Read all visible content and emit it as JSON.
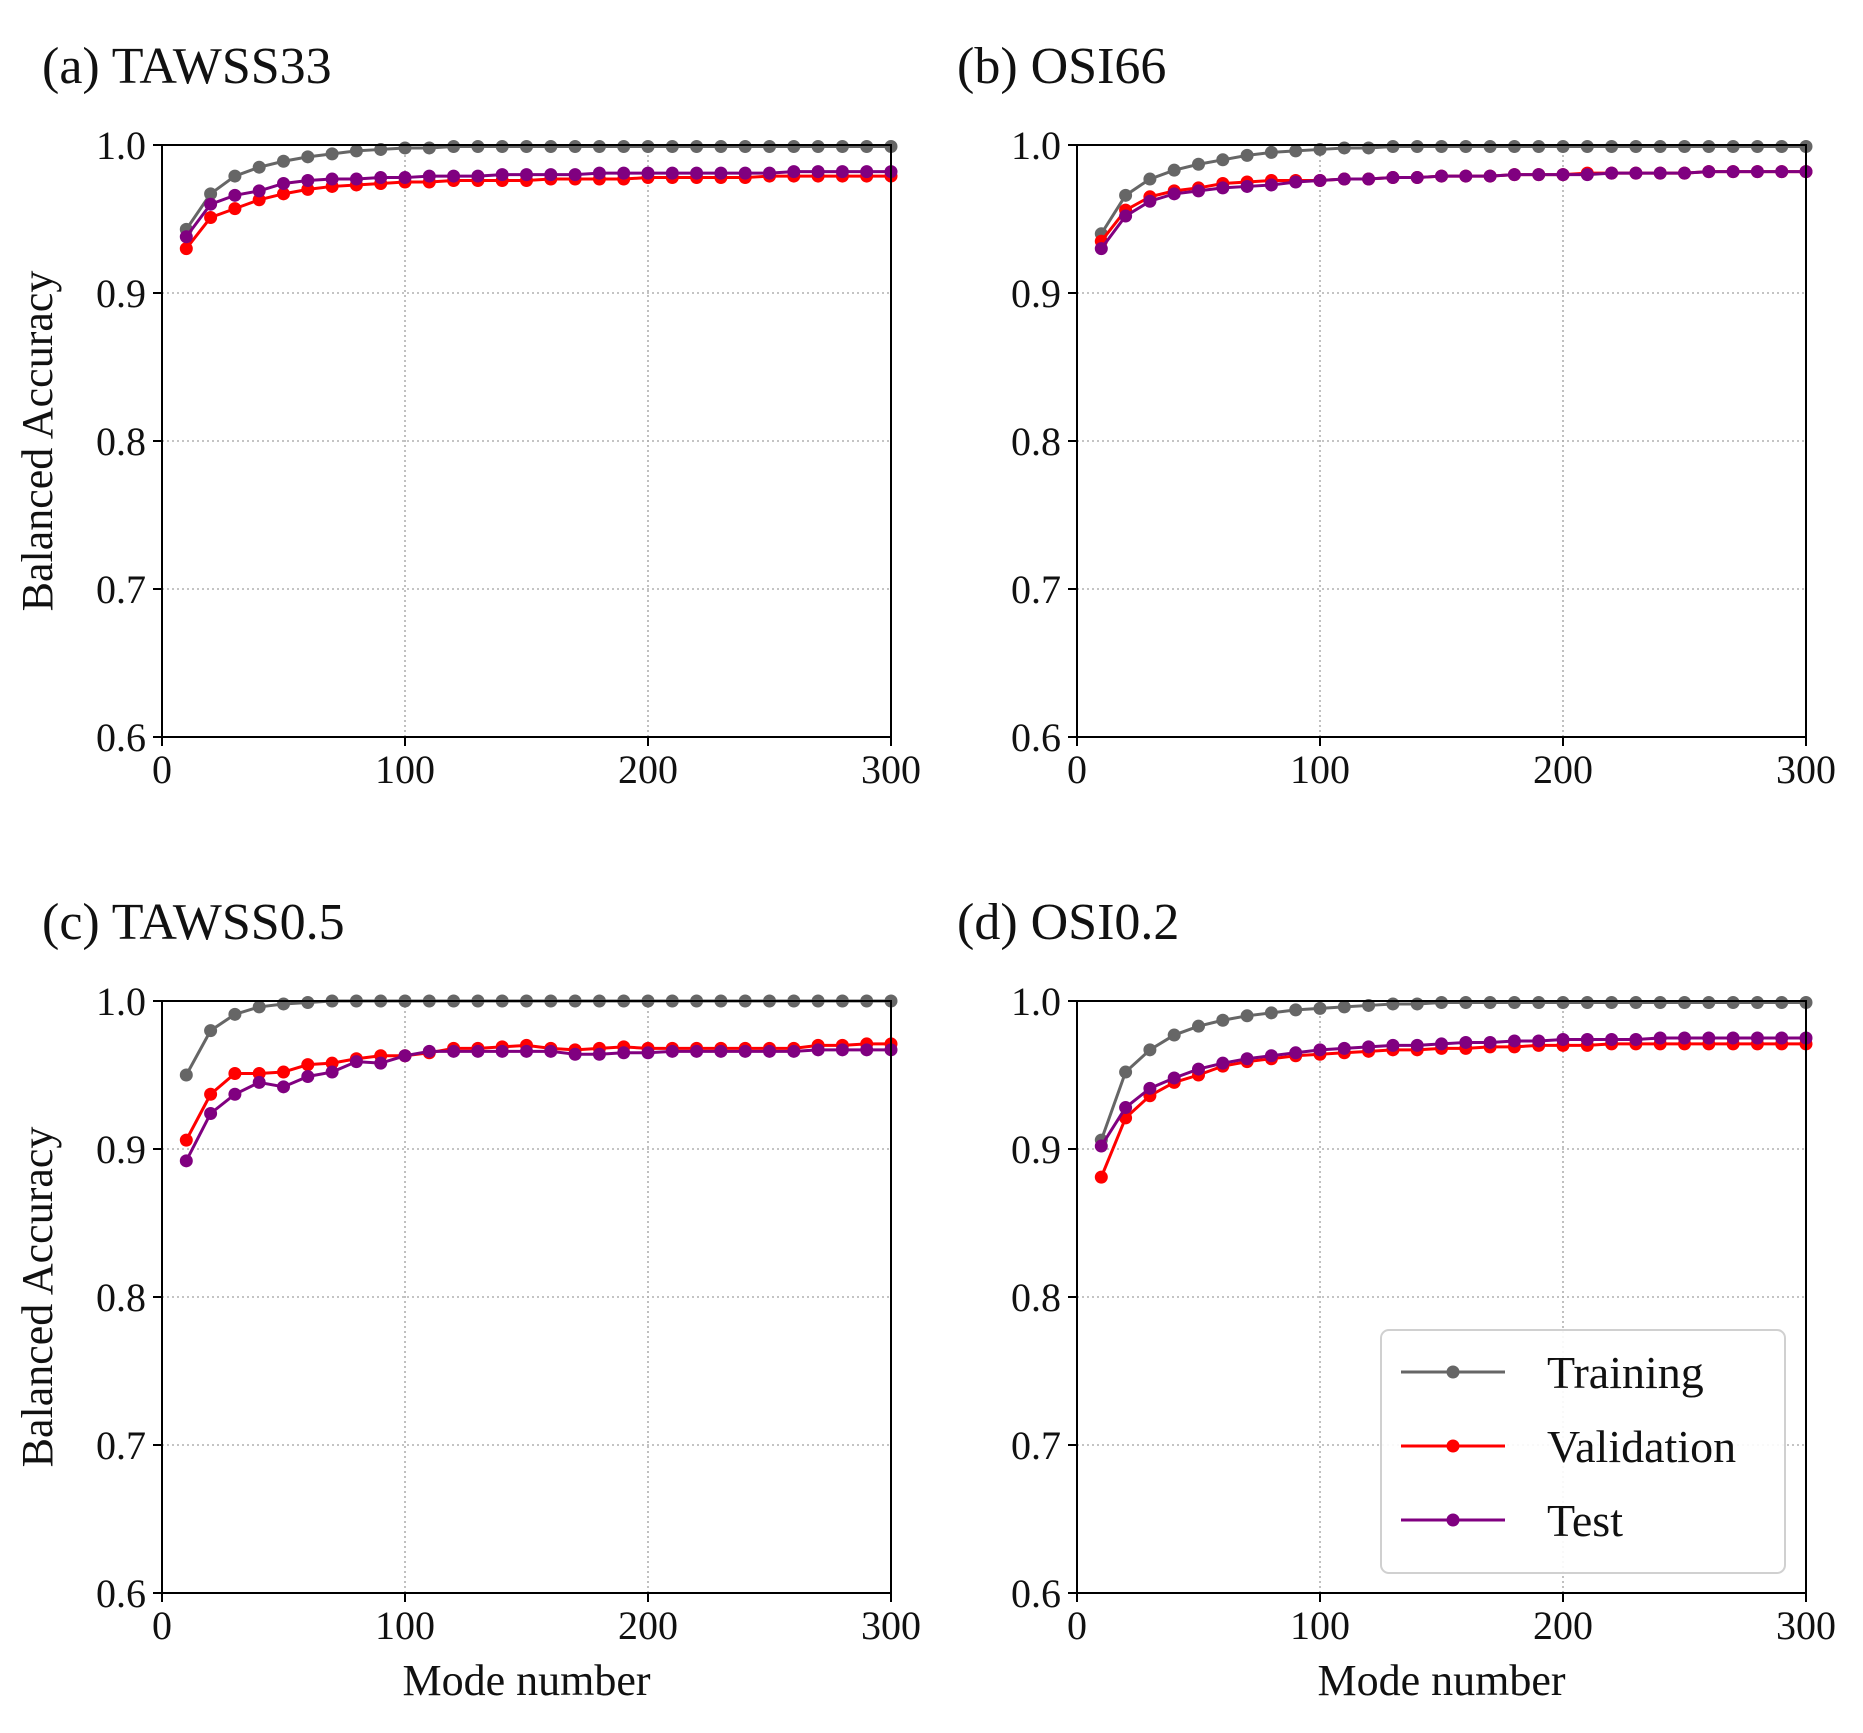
{
  "figure": {
    "legend": {
      "location": "lower right",
      "panel": 3
    }
  },
  "colors": {
    "Training": "#666666",
    "Validation": "#ff0000",
    "Test": "#800080"
  },
  "chart_data": [
    {
      "type": "line",
      "title": "(a) TAWSS33",
      "xlabel": "",
      "ylabel": "Balanced Accuracy",
      "xlim": [
        0,
        300
      ],
      "ylim": [
        0.6,
        1.0
      ],
      "xticks": [
        0,
        100,
        200,
        300
      ],
      "yticks": [
        0.6,
        0.7,
        0.8,
        0.9,
        1.0
      ],
      "xtick_labels": [
        "0",
        "100",
        "200",
        "300"
      ],
      "ytick_labels": [
        "0.6",
        "0.7",
        "0.8",
        "0.9",
        "1.0"
      ],
      "grid": true,
      "x": [
        10,
        20,
        30,
        40,
        50,
        60,
        70,
        80,
        90,
        100,
        110,
        120,
        130,
        140,
        150,
        160,
        170,
        180,
        190,
        200,
        210,
        220,
        230,
        240,
        250,
        260,
        270,
        280,
        290,
        300
      ],
      "series": [
        {
          "name": "Training",
          "values": [
            0.943,
            0.967,
            0.979,
            0.985,
            0.989,
            0.992,
            0.994,
            0.996,
            0.997,
            0.998,
            0.998,
            0.999,
            0.999,
            0.999,
            0.999,
            0.999,
            0.999,
            0.999,
            0.999,
            0.999,
            0.999,
            0.999,
            0.999,
            0.999,
            0.999,
            0.999,
            0.999,
            0.999,
            0.999,
            0.999
          ]
        },
        {
          "name": "Validation",
          "values": [
            0.93,
            0.951,
            0.957,
            0.963,
            0.967,
            0.97,
            0.972,
            0.973,
            0.974,
            0.975,
            0.975,
            0.976,
            0.976,
            0.976,
            0.976,
            0.977,
            0.977,
            0.977,
            0.977,
            0.978,
            0.978,
            0.978,
            0.978,
            0.978,
            0.979,
            0.979,
            0.979,
            0.979,
            0.979,
            0.979
          ]
        },
        {
          "name": "Test",
          "values": [
            0.938,
            0.96,
            0.966,
            0.969,
            0.974,
            0.976,
            0.977,
            0.977,
            0.978,
            0.978,
            0.979,
            0.979,
            0.979,
            0.98,
            0.98,
            0.98,
            0.98,
            0.981,
            0.981,
            0.981,
            0.981,
            0.981,
            0.981,
            0.981,
            0.981,
            0.982,
            0.982,
            0.982,
            0.982,
            0.982
          ]
        }
      ]
    },
    {
      "type": "line",
      "title": "(b) OSI66",
      "xlabel": "",
      "ylabel": "",
      "xlim": [
        0,
        300
      ],
      "ylim": [
        0.6,
        1.0
      ],
      "xticks": [
        0,
        100,
        200,
        300
      ],
      "yticks": [
        0.6,
        0.7,
        0.8,
        0.9,
        1.0
      ],
      "xtick_labels": [
        "0",
        "100",
        "200",
        "300"
      ],
      "ytick_labels": [
        "0.6",
        "0.7",
        "0.8",
        "0.9",
        "1.0"
      ],
      "grid": true,
      "x": [
        10,
        20,
        30,
        40,
        50,
        60,
        70,
        80,
        90,
        100,
        110,
        120,
        130,
        140,
        150,
        160,
        170,
        180,
        190,
        200,
        210,
        220,
        230,
        240,
        250,
        260,
        270,
        280,
        290,
        300
      ],
      "series": [
        {
          "name": "Training",
          "values": [
            0.94,
            0.966,
            0.977,
            0.983,
            0.987,
            0.99,
            0.993,
            0.995,
            0.996,
            0.997,
            0.998,
            0.998,
            0.999,
            0.999,
            0.999,
            0.999,
            0.999,
            0.999,
            0.999,
            0.999,
            0.999,
            0.999,
            0.999,
            0.999,
            0.999,
            0.999,
            0.999,
            0.999,
            0.999,
            0.999
          ]
        },
        {
          "name": "Validation",
          "values": [
            0.935,
            0.956,
            0.965,
            0.969,
            0.971,
            0.974,
            0.975,
            0.976,
            0.976,
            0.976,
            0.977,
            0.977,
            0.978,
            0.978,
            0.979,
            0.979,
            0.979,
            0.98,
            0.98,
            0.98,
            0.981,
            0.981,
            0.981,
            0.981,
            0.981,
            0.982,
            0.982,
            0.982,
            0.982,
            0.982
          ]
        },
        {
          "name": "Test",
          "values": [
            0.93,
            0.952,
            0.962,
            0.967,
            0.969,
            0.971,
            0.972,
            0.973,
            0.975,
            0.976,
            0.977,
            0.977,
            0.978,
            0.978,
            0.979,
            0.979,
            0.979,
            0.98,
            0.98,
            0.98,
            0.98,
            0.981,
            0.981,
            0.981,
            0.981,
            0.982,
            0.982,
            0.982,
            0.982,
            0.982
          ]
        }
      ]
    },
    {
      "type": "line",
      "title": "(c) TAWSS0.5",
      "xlabel": "Mode number",
      "ylabel": "Balanced Accuracy",
      "xlim": [
        0,
        300
      ],
      "ylim": [
        0.6,
        1.0
      ],
      "xticks": [
        0,
        100,
        200,
        300
      ],
      "yticks": [
        0.6,
        0.7,
        0.8,
        0.9,
        1.0
      ],
      "xtick_labels": [
        "0",
        "100",
        "200",
        "300"
      ],
      "ytick_labels": [
        "0.6",
        "0.7",
        "0.8",
        "0.9",
        "1.0"
      ],
      "grid": true,
      "x": [
        10,
        20,
        30,
        40,
        50,
        60,
        70,
        80,
        90,
        100,
        110,
        120,
        130,
        140,
        150,
        160,
        170,
        180,
        190,
        200,
        210,
        220,
        230,
        240,
        250,
        260,
        270,
        280,
        290,
        300
      ],
      "series": [
        {
          "name": "Training",
          "values": [
            0.95,
            0.98,
            0.991,
            0.996,
            0.998,
            0.999,
            1.0,
            1.0,
            1.0,
            1.0,
            1.0,
            1.0,
            1.0,
            1.0,
            1.0,
            1.0,
            1.0,
            1.0,
            1.0,
            1.0,
            1.0,
            1.0,
            1.0,
            1.0,
            1.0,
            1.0,
            1.0,
            1.0,
            1.0,
            1.0
          ]
        },
        {
          "name": "Validation",
          "values": [
            0.906,
            0.937,
            0.951,
            0.951,
            0.952,
            0.957,
            0.958,
            0.961,
            0.963,
            0.963,
            0.965,
            0.968,
            0.968,
            0.969,
            0.97,
            0.968,
            0.967,
            0.968,
            0.969,
            0.968,
            0.968,
            0.968,
            0.968,
            0.968,
            0.968,
            0.968,
            0.97,
            0.97,
            0.971,
            0.971
          ]
        },
        {
          "name": "Test",
          "values": [
            0.892,
            0.924,
            0.937,
            0.945,
            0.942,
            0.949,
            0.952,
            0.959,
            0.958,
            0.963,
            0.966,
            0.966,
            0.966,
            0.966,
            0.966,
            0.966,
            0.964,
            0.964,
            0.965,
            0.965,
            0.966,
            0.966,
            0.966,
            0.966,
            0.966,
            0.966,
            0.967,
            0.967,
            0.967,
            0.967
          ]
        }
      ]
    },
    {
      "type": "line",
      "title": "(d) OSI0.2",
      "xlabel": "Mode number",
      "ylabel": "",
      "xlim": [
        0,
        300
      ],
      "ylim": [
        0.6,
        1.0
      ],
      "xticks": [
        0,
        100,
        200,
        300
      ],
      "yticks": [
        0.6,
        0.7,
        0.8,
        0.9,
        1.0
      ],
      "xtick_labels": [
        "0",
        "100",
        "200",
        "300"
      ],
      "ytick_labels": [
        "0.6",
        "0.7",
        "0.8",
        "0.9",
        "1.0"
      ],
      "grid": true,
      "x": [
        10,
        20,
        30,
        40,
        50,
        60,
        70,
        80,
        90,
        100,
        110,
        120,
        130,
        140,
        150,
        160,
        170,
        180,
        190,
        200,
        210,
        220,
        230,
        240,
        250,
        260,
        270,
        280,
        290,
        300
      ],
      "series": [
        {
          "name": "Training",
          "values": [
            0.906,
            0.952,
            0.967,
            0.977,
            0.983,
            0.987,
            0.99,
            0.992,
            0.994,
            0.995,
            0.996,
            0.997,
            0.998,
            0.998,
            0.999,
            0.999,
            0.999,
            0.999,
            0.999,
            0.999,
            0.999,
            0.999,
            0.999,
            0.999,
            0.999,
            0.999,
            0.999,
            0.999,
            0.999,
            0.999
          ]
        },
        {
          "name": "Validation",
          "values": [
            0.881,
            0.921,
            0.936,
            0.945,
            0.95,
            0.956,
            0.959,
            0.961,
            0.963,
            0.964,
            0.965,
            0.966,
            0.967,
            0.967,
            0.968,
            0.968,
            0.969,
            0.969,
            0.97,
            0.97,
            0.97,
            0.971,
            0.971,
            0.971,
            0.971,
            0.971,
            0.971,
            0.971,
            0.971,
            0.971
          ]
        },
        {
          "name": "Test",
          "values": [
            0.902,
            0.928,
            0.941,
            0.948,
            0.954,
            0.958,
            0.961,
            0.963,
            0.965,
            0.967,
            0.968,
            0.969,
            0.97,
            0.97,
            0.971,
            0.972,
            0.972,
            0.973,
            0.973,
            0.974,
            0.974,
            0.974,
            0.974,
            0.975,
            0.975,
            0.975,
            0.975,
            0.975,
            0.975,
            0.975
          ]
        }
      ]
    }
  ]
}
